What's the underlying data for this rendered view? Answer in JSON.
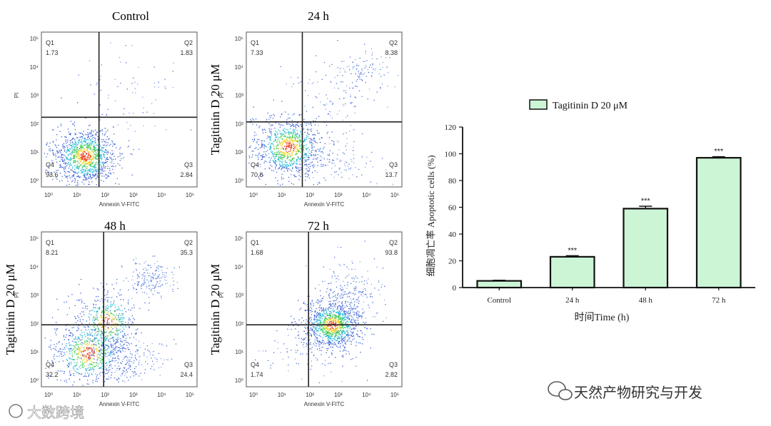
{
  "figure": {
    "side_label": "Tagitinin  D 20 μM",
    "watermark_left": "大数跨境",
    "watermark_right": "天然产物研究与开发"
  },
  "flow_panels": [
    {
      "title": "Control",
      "side_label": "",
      "y_axis_label": "PI",
      "x_axis_label": "Annexin V-FITC",
      "quadrants": {
        "q1": {
          "name": "Q1",
          "value": "1.73"
        },
        "q2": {
          "name": "Q2",
          "value": "1.83"
        },
        "q3": {
          "name": "Q3",
          "value": "2.84"
        },
        "q4": {
          "name": "Q4",
          "value": "93.6"
        }
      }
    },
    {
      "title": "24 h",
      "side_label": "Tagitinin  D 20 μM",
      "y_axis_label": "PI",
      "x_axis_label": "Annexin V-FITC",
      "quadrants": {
        "q1": {
          "name": "Q1",
          "value": "7.33"
        },
        "q2": {
          "name": "Q2",
          "value": "8.38"
        },
        "q3": {
          "name": "Q3",
          "value": "13.7"
        },
        "q4": {
          "name": "Q4",
          "value": "70.6"
        }
      }
    },
    {
      "title": "48 h",
      "side_label": "Tagitinin  D 20 μM",
      "y_axis_label": "PI",
      "x_axis_label": "Annexin V-FITC",
      "quadrants": {
        "q1": {
          "name": "Q1",
          "value": "8.21"
        },
        "q2": {
          "name": "Q2",
          "value": "35.3"
        },
        "q3": {
          "name": "Q3",
          "value": "24.4"
        },
        "q4": {
          "name": "Q4",
          "value": "32.2"
        }
      }
    },
    {
      "title": "72 h",
      "side_label": "Tagitinin  D 20 μM",
      "y_axis_label": "PI",
      "x_axis_label": "Annexin V-FITC",
      "quadrants": {
        "q1": {
          "name": "Q1",
          "value": "1.68"
        },
        "q2": {
          "name": "Q2",
          "value": "93.8"
        },
        "q3": {
          "name": "Q3",
          "value": "2.82"
        },
        "q4": {
          "name": "Q4",
          "value": "1.74"
        }
      }
    }
  ],
  "chart_data": {
    "type": "bar",
    "categories": [
      "Control",
      "24 h",
      "48 h",
      "72 h"
    ],
    "series": [
      {
        "name": "Tagitinin D 20 μM",
        "values": [
          5,
          23,
          59,
          97
        ],
        "errors": [
          0.5,
          0.8,
          1.8,
          0.8
        ]
      }
    ],
    "annotations": [
      "",
      "***",
      "***",
      "***"
    ],
    "xlabel": "时间Time (h)",
    "ylabel": "细胞凋亡率 Apoptotic cells (%)",
    "ylim": [
      0,
      120
    ],
    "yticks": [
      0,
      20,
      40,
      60,
      80,
      100,
      120
    ],
    "bar_color": "#ccf5d6",
    "legend_position": "top"
  },
  "log_ticks": [
    "10⁰",
    "10¹",
    "10²",
    "10³",
    "10⁴",
    "10⁵"
  ]
}
